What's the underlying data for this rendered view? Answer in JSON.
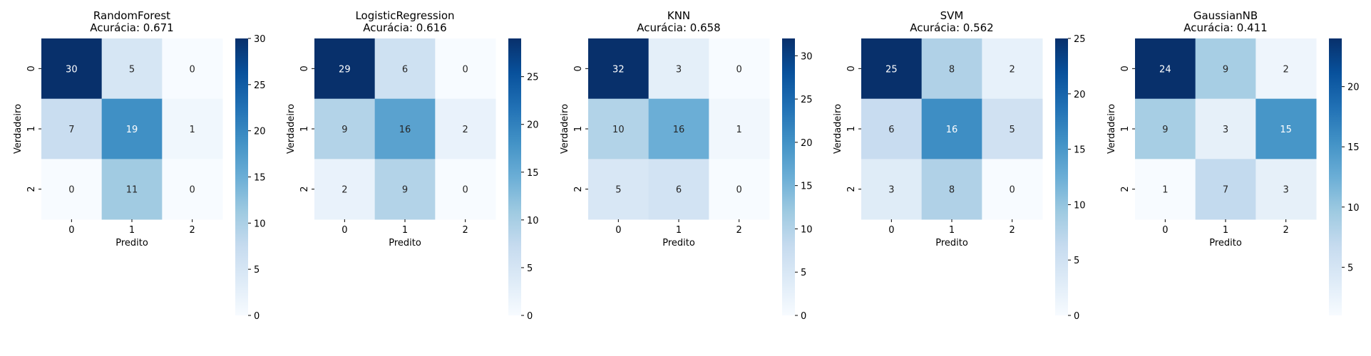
{
  "chart_data": [
    {
      "type": "heatmap",
      "title": "RandomForest",
      "subtitle": "Acurácia: 0.671",
      "xlabel": "Predito",
      "ylabel": "Verdadeiro",
      "x_categories": [
        "0",
        "1",
        "2"
      ],
      "y_categories": [
        "0",
        "1",
        "2"
      ],
      "values": [
        [
          30,
          5,
          0
        ],
        [
          7,
          19,
          1
        ],
        [
          0,
          11,
          0
        ]
      ],
      "colorbar": {
        "range": [
          0,
          30
        ],
        "ticks": [
          "0",
          "5",
          "10",
          "15",
          "20",
          "25",
          "30"
        ]
      },
      "colormap": "Blues"
    },
    {
      "type": "heatmap",
      "title": "LogisticRegression",
      "subtitle": "Acurácia: 0.616",
      "xlabel": "Predito",
      "ylabel": "Verdadeiro",
      "x_categories": [
        "0",
        "1",
        "2"
      ],
      "y_categories": [
        "0",
        "1",
        "2"
      ],
      "values": [
        [
          29,
          6,
          0
        ],
        [
          9,
          16,
          2
        ],
        [
          2,
          9,
          0
        ]
      ],
      "colorbar": {
        "range": [
          0,
          29
        ],
        "ticks": [
          "0",
          "5",
          "10",
          "15",
          "20",
          "25"
        ]
      },
      "colormap": "Blues"
    },
    {
      "type": "heatmap",
      "title": "KNN",
      "subtitle": "Acurácia: 0.658",
      "xlabel": "Predito",
      "ylabel": "Verdadeiro",
      "x_categories": [
        "0",
        "1",
        "2"
      ],
      "y_categories": [
        "0",
        "1",
        "2"
      ],
      "values": [
        [
          32,
          3,
          0
        ],
        [
          10,
          16,
          1
        ],
        [
          5,
          6,
          0
        ]
      ],
      "colorbar": {
        "range": [
          0,
          32
        ],
        "ticks": [
          "0",
          "5",
          "10",
          "15",
          "20",
          "25",
          "30"
        ]
      },
      "colormap": "Blues"
    },
    {
      "type": "heatmap",
      "title": "SVM",
      "subtitle": "Acurácia: 0.562",
      "xlabel": "Predito",
      "ylabel": "Verdadeiro",
      "x_categories": [
        "0",
        "1",
        "2"
      ],
      "y_categories": [
        "0",
        "1",
        "2"
      ],
      "values": [
        [
          25,
          8,
          2
        ],
        [
          6,
          16,
          5
        ],
        [
          3,
          8,
          0
        ]
      ],
      "colorbar": {
        "range": [
          0,
          25
        ],
        "ticks": [
          "0",
          "5",
          "10",
          "15",
          "20",
          "25"
        ]
      },
      "colormap": "Blues"
    },
    {
      "type": "heatmap",
      "title": "GaussianNB",
      "subtitle": "Acurácia: 0.411",
      "xlabel": "Predito",
      "ylabel": "Verdadeiro",
      "x_categories": [
        "0",
        "1",
        "2"
      ],
      "y_categories": [
        "0",
        "1",
        "2"
      ],
      "values": [
        [
          24,
          9,
          2
        ],
        [
          9,
          3,
          15
        ],
        [
          1,
          7,
          3
        ]
      ],
      "colorbar": {
        "range": [
          1,
          24
        ],
        "ticks": [
          "5",
          "10",
          "15",
          "20"
        ]
      },
      "colormap": "Blues"
    }
  ]
}
